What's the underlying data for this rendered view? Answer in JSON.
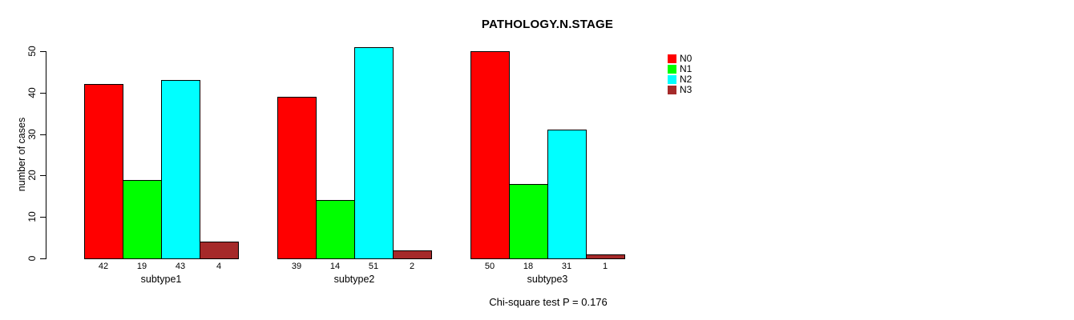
{
  "chart_data": {
    "type": "bar",
    "grouped": true,
    "title": "PATHOLOGY.N.STAGE",
    "xlabel": "",
    "ylabel": "number of cases",
    "annotation": "Chi-square test P = 0.176",
    "categories": [
      "subtype1",
      "subtype2",
      "subtype3"
    ],
    "series": [
      {
        "name": "N0",
        "color": "#ff0000",
        "values": [
          42,
          39,
          50
        ]
      },
      {
        "name": "N1",
        "color": "#00ff00",
        "values": [
          19,
          14,
          18
        ]
      },
      {
        "name": "N2",
        "color": "#00ffff",
        "values": [
          43,
          51,
          31
        ]
      },
      {
        "name": "N3",
        "color": "#a52a2a",
        "values": [
          4,
          2,
          1
        ]
      }
    ],
    "bar_value_labels_shown": true,
    "y_ticks": [
      0,
      10,
      20,
      30,
      40,
      50
    ],
    "ylim": [
      0,
      50
    ],
    "grid": false,
    "legend_position": "right",
    "background_color": "#ffffff",
    "text_color": "#000000"
  }
}
